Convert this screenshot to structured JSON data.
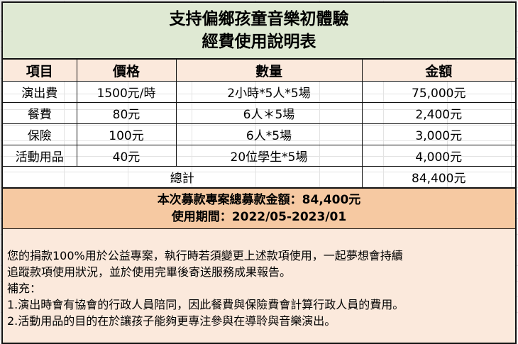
{
  "title": {
    "line1": "支持偏鄉孩童音樂初體驗",
    "line2": "經費使用說明表"
  },
  "table": {
    "headers": [
      "項目",
      "價格",
      "數量",
      "金額"
    ],
    "rows": [
      {
        "item": "演出費",
        "price": "1500元/時",
        "qty": "2小時*5人*5場",
        "amount": "75,000元"
      },
      {
        "item": "餐費",
        "price": "80元",
        "qty": "6人＊5場",
        "amount": "2,400元"
      },
      {
        "item": "保險",
        "price": "100元",
        "qty": "6人*5場",
        "amount": "3,000元"
      },
      {
        "item": "活動用品",
        "price": "40元",
        "qty": "20位學生*5場",
        "amount": "4,000元"
      }
    ],
    "total_label": "總計",
    "total_amount": "84,400元"
  },
  "summary": {
    "line1": "本次募款專案總募款金額：84,400元",
    "line2": "使用期間：2022/05-2023/01"
  },
  "notes": {
    "line1": "您的捐款100%用於公益專案，執行時若須變更上述款項使用，一起夢想會持續",
    "line2": "追蹤款項使用狀況，並於使用完畢後寄送服務成果報告。",
    "line3": "補充：",
    "line4": "1.演出時會有協會的行政人員陪同，因此餐費與保險費會計算行政人員的費用。",
    "line5": "2.活動用品的目的在於讓孩子能夠更專注參與在導聆與音樂演出。"
  }
}
